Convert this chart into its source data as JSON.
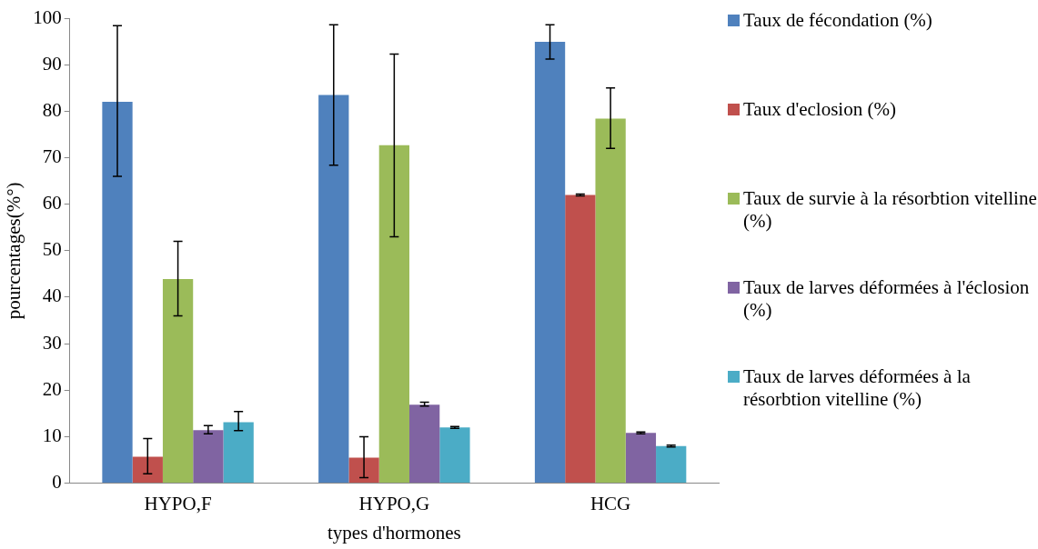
{
  "chart_data": {
    "type": "bar",
    "xlabel": "types d'hormones",
    "ylabel": "pourcentages(%°)",
    "categories": [
      "HYPO,F",
      "HYPO,G",
      "HCG"
    ],
    "series": [
      {
        "name": "Taux de fécondation (%)",
        "color": "#4f81bd",
        "values": [
          82.0,
          83.5,
          94.9
        ],
        "errors": [
          [
            66.0,
            98.4
          ],
          [
            68.4,
            98.6
          ],
          [
            91.2,
            98.6
          ]
        ]
      },
      {
        "name": "Taux d'eclosion (%)",
        "color": "#c0504d",
        "values": [
          5.7,
          5.5,
          62.0
        ],
        "errors": [
          [
            2.0,
            9.6
          ],
          [
            1.2,
            10.0
          ],
          [
            61.8,
            62.2
          ]
        ]
      },
      {
        "name": "Taux de survie à la résorbtion vitelline (%)",
        "color": "#9bbb59",
        "values": [
          43.9,
          72.7,
          78.4
        ],
        "errors": [
          [
            36.0,
            52.0
          ],
          [
            53.0,
            92.3
          ],
          [
            72.0,
            85.0
          ]
        ]
      },
      {
        "name": "Taux de larves déformées à l'éclosion (%)",
        "color": "#8064a2",
        "values": [
          11.4,
          16.9,
          10.8
        ],
        "errors": [
          [
            10.6,
            12.4
          ],
          [
            16.6,
            17.4
          ],
          [
            10.6,
            11.0
          ]
        ]
      },
      {
        "name": "Taux de larves déformées à la résorbtion vitelline (%)",
        "color": "#4bacc6",
        "values": [
          13.1,
          12.0,
          8.0
        ],
        "errors": [
          [
            11.3,
            15.4
          ],
          [
            11.8,
            12.2
          ],
          [
            7.8,
            8.2
          ]
        ]
      }
    ],
    "ylim": [
      0,
      100
    ],
    "yticks": [
      0,
      10,
      20,
      30,
      40,
      50,
      60,
      70,
      80,
      90,
      100
    ],
    "grid": false,
    "legend": "right"
  }
}
